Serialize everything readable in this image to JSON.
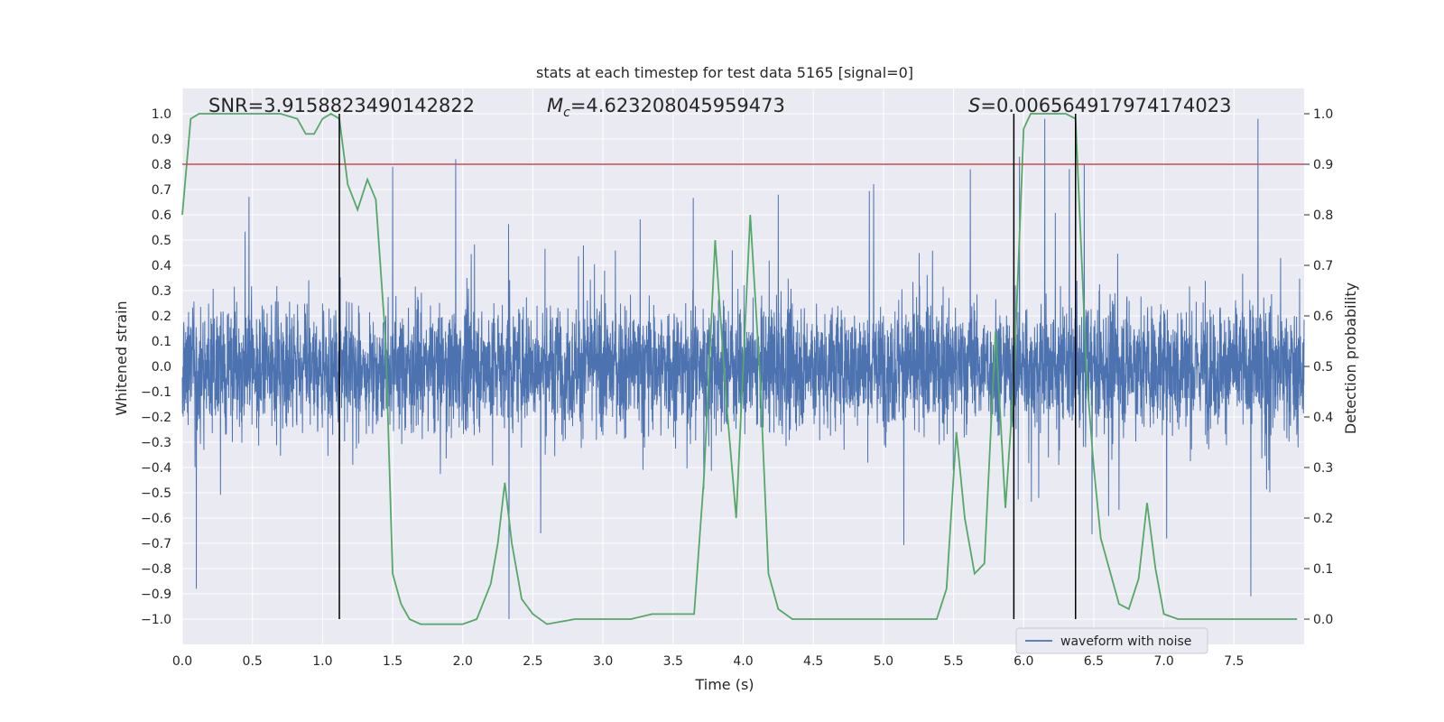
{
  "chart_data": {
    "type": "line",
    "title": "stats at each timestep for test data 5165 [signal=0]",
    "xlabel": "Time (s)",
    "ylabel": "Whitened strain",
    "y2label": "Detection probability",
    "xlim": [
      0.0,
      8.0
    ],
    "ylim": [
      -1.1,
      1.1
    ],
    "y2lim": [
      -0.05,
      1.05
    ],
    "grid": true,
    "x_ticks": [
      "0.0",
      "0.5",
      "1.0",
      "1.5",
      "2.0",
      "2.5",
      "3.0",
      "3.5",
      "4.0",
      "4.5",
      "5.0",
      "5.5",
      "6.0",
      "6.5",
      "7.0",
      "7.5"
    ],
    "x_tick_values": [
      0.0,
      0.5,
      1.0,
      1.5,
      2.0,
      2.5,
      3.0,
      3.5,
      4.0,
      4.5,
      5.0,
      5.5,
      6.0,
      6.5,
      7.0,
      7.5
    ],
    "y_ticks": [
      "1.0",
      "0.9",
      "0.8",
      "0.7",
      "0.6",
      "0.5",
      "0.4",
      "0.3",
      "0.2",
      "0.1",
      "0.0",
      "-0.1",
      "-0.2",
      "-0.3",
      "-0.4",
      "-0.5",
      "-0.6",
      "-0.7",
      "-0.8",
      "-0.9",
      "-1.0"
    ],
    "y_tick_values": [
      1.0,
      0.9,
      0.8,
      0.7,
      0.6,
      0.5,
      0.4,
      0.3,
      0.2,
      0.1,
      0.0,
      -0.1,
      -0.2,
      -0.3,
      -0.4,
      -0.5,
      -0.6,
      -0.7,
      -0.8,
      -0.9,
      -1.0
    ],
    "y2_ticks": [
      "1.0",
      "0.9",
      "0.8",
      "0.7",
      "0.6",
      "0.5",
      "0.4",
      "0.3",
      "0.2",
      "0.1",
      "0.0"
    ],
    "y2_tick_values": [
      1.0,
      0.9,
      0.8,
      0.7,
      0.6,
      0.5,
      0.4,
      0.3,
      0.2,
      0.1,
      0.0
    ],
    "annotations": {
      "snr": "SNR=3.9158823490142822",
      "mc_symbol": "M",
      "mc_sub": "c",
      "mc_value": "=4.623208045959473",
      "s_symbol": "S",
      "s_value": "=0.006564917974174023"
    },
    "legend": {
      "position": "lower-right",
      "entries": [
        "waveform with noise"
      ]
    },
    "threshold_probability": 0.9,
    "vertical_lines_x": [
      1.12,
      5.93,
      6.37
    ],
    "waveform": {
      "name": "waveform with noise",
      "color": "#4c72b0",
      "t_start": 0.0,
      "t_end": 8.0,
      "typical_amplitude": 0.35,
      "peak_values": [
        {
          "x": 0.1,
          "y": -0.88
        },
        {
          "x": 1.5,
          "y": 0.79
        },
        {
          "x": 1.95,
          "y": 0.82
        },
        {
          "x": 2.33,
          "y": -1.0
        },
        {
          "x": 4.25,
          "y": 0.68
        },
        {
          "x": 5.62,
          "y": 0.78
        },
        {
          "x": 5.97,
          "y": 0.83
        },
        {
          "x": 6.15,
          "y": 0.98
        },
        {
          "x": 7.62,
          "y": -0.91
        },
        {
          "x": 7.67,
          "y": 0.98
        }
      ]
    },
    "probability": {
      "name": "detection probability",
      "color": "#55a868",
      "x": [
        0.0,
        0.06,
        0.12,
        0.3,
        0.5,
        0.7,
        0.82,
        0.88,
        0.94,
        1.0,
        1.06,
        1.12,
        1.18,
        1.25,
        1.32,
        1.38,
        1.45,
        1.5,
        1.56,
        1.62,
        1.7,
        1.8,
        2.0,
        2.1,
        2.2,
        2.25,
        2.3,
        2.35,
        2.42,
        2.5,
        2.6,
        2.8,
        3.0,
        3.2,
        3.35,
        3.4,
        3.5,
        3.65,
        3.72,
        3.8,
        3.88,
        3.95,
        4.05,
        4.12,
        4.18,
        4.25,
        4.35,
        4.45,
        4.7,
        4.9,
        5.0,
        5.1,
        5.2,
        5.3,
        5.38,
        5.45,
        5.52,
        5.58,
        5.65,
        5.72,
        5.8,
        5.87,
        5.93,
        6.0,
        6.05,
        6.12,
        6.2,
        6.3,
        6.37,
        6.45,
        6.5,
        6.55,
        6.62,
        6.68,
        6.75,
        6.82,
        6.88,
        6.94,
        7.0,
        7.1,
        7.3,
        7.5,
        7.7,
        7.95
      ],
      "y": [
        0.8,
        0.99,
        1.0,
        1.0,
        1.0,
        1.0,
        0.99,
        0.96,
        0.96,
        0.99,
        1.0,
        0.99,
        0.86,
        0.81,
        0.87,
        0.83,
        0.55,
        0.09,
        0.03,
        0.0,
        -0.01,
        -0.01,
        -0.01,
        0.0,
        0.07,
        0.15,
        0.27,
        0.15,
        0.04,
        0.01,
        -0.01,
        0.0,
        0.0,
        0.0,
        0.01,
        0.01,
        0.01,
        0.01,
        0.28,
        0.75,
        0.43,
        0.2,
        0.8,
        0.48,
        0.09,
        0.02,
        0.0,
        0.0,
        0.0,
        0.0,
        0.0,
        0.0,
        0.0,
        0.0,
        0.0,
        0.06,
        0.37,
        0.2,
        0.09,
        0.11,
        0.57,
        0.22,
        0.47,
        0.97,
        1.0,
        1.0,
        1.0,
        1.0,
        0.99,
        0.48,
        0.3,
        0.16,
        0.09,
        0.03,
        0.02,
        0.08,
        0.23,
        0.1,
        0.01,
        0.0,
        0.0,
        0.0,
        0.0,
        0.0
      ]
    }
  }
}
